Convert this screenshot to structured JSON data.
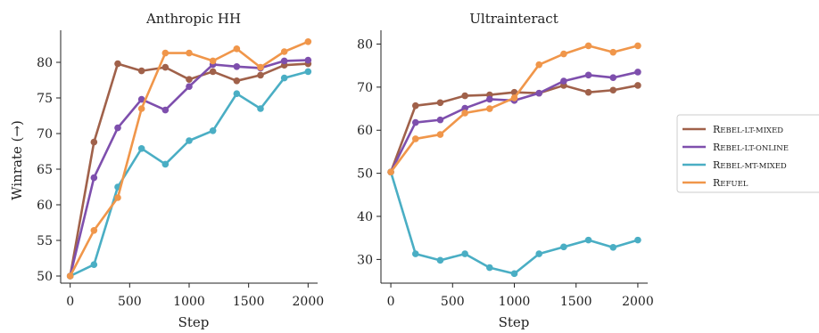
{
  "chart_data": [
    {
      "type": "line",
      "title": "Anthropic HH",
      "xlabel": "Step",
      "ylabel": "Winrate (→)",
      "x": [
        0,
        200,
        400,
        600,
        800,
        1000,
        1200,
        1400,
        1600,
        1800,
        2000
      ],
      "xlim": [
        -80,
        2080
      ],
      "ylim": [
        49,
        84.5
      ],
      "xticks": [
        0,
        500,
        1000,
        1500,
        2000
      ],
      "yticks": [
        50,
        55,
        60,
        65,
        70,
        75,
        80
      ],
      "grid": false,
      "series": [
        {
          "name": "REBEL-LT-MIXED",
          "color": "#a0614a",
          "values": [
            50,
            68.8,
            79.8,
            78.8,
            79.3,
            77.6,
            78.7,
            77.4,
            78.2,
            79.6,
            79.8
          ]
        },
        {
          "name": "REBEL-LT-ONLINE",
          "color": "#7e4fad",
          "values": [
            50,
            63.8,
            70.8,
            74.8,
            73.3,
            76.6,
            79.7,
            79.4,
            79.2,
            80.2,
            80.3
          ]
        },
        {
          "name": "REBEL-MT-MIXED",
          "color": "#4aaec4",
          "values": [
            50,
            51.6,
            62.5,
            67.9,
            65.7,
            69.0,
            70.4,
            75.6,
            73.5,
            77.8,
            78.7
          ]
        },
        {
          "name": "REFUEL",
          "color": "#f0964a",
          "values": [
            50,
            56.4,
            61.0,
            73.5,
            81.3,
            81.3,
            80.2,
            81.9,
            79.3,
            81.5,
            82.9
          ]
        }
      ]
    },
    {
      "type": "line",
      "title": "Ultrainteract",
      "xlabel": "Step",
      "ylabel": "",
      "x": [
        0,
        200,
        400,
        600,
        800,
        1000,
        1200,
        1400,
        1600,
        1800,
        2000
      ],
      "xlim": [
        -80,
        2080
      ],
      "ylim": [
        24.5,
        83.2
      ],
      "xticks": [
        0,
        500,
        1000,
        1500,
        2000
      ],
      "yticks": [
        30,
        40,
        50,
        60,
        70,
        80
      ],
      "grid": false,
      "series": [
        {
          "name": "REBEL-LT-MIXED",
          "color": "#a0614a",
          "values": [
            50.3,
            65.7,
            66.4,
            68.0,
            68.2,
            68.8,
            68.6,
            70.4,
            68.8,
            69.3,
            70.4
          ]
        },
        {
          "name": "REBEL-LT-ONLINE",
          "color": "#7e4fad",
          "values": [
            50.3,
            61.8,
            62.4,
            65.1,
            67.2,
            66.9,
            68.6,
            71.4,
            72.8,
            72.2,
            73.5
          ]
        },
        {
          "name": "REBEL-MT-MIXED",
          "color": "#4aaec4",
          "values": [
            50.3,
            31.3,
            29.8,
            31.3,
            28.1,
            26.7,
            31.3,
            32.9,
            34.5,
            32.8,
            34.5
          ]
        },
        {
          "name": "REFUEL",
          "color": "#f0964a",
          "values": [
            50.3,
            58.0,
            59.0,
            64.0,
            65.0,
            67.5,
            75.2,
            77.7,
            79.6,
            78.1,
            79.6
          ]
        }
      ]
    }
  ],
  "legend": {
    "placement": "right",
    "entries": [
      {
        "label": "Rebel-lt-mixed",
        "color": "#a0614a"
      },
      {
        "label": "Rebel-lt-online",
        "color": "#7e4fad"
      },
      {
        "label": "Rebel-mt-mixed",
        "color": "#4aaec4"
      },
      {
        "label": "Refuel",
        "color": "#f0964a"
      }
    ]
  }
}
